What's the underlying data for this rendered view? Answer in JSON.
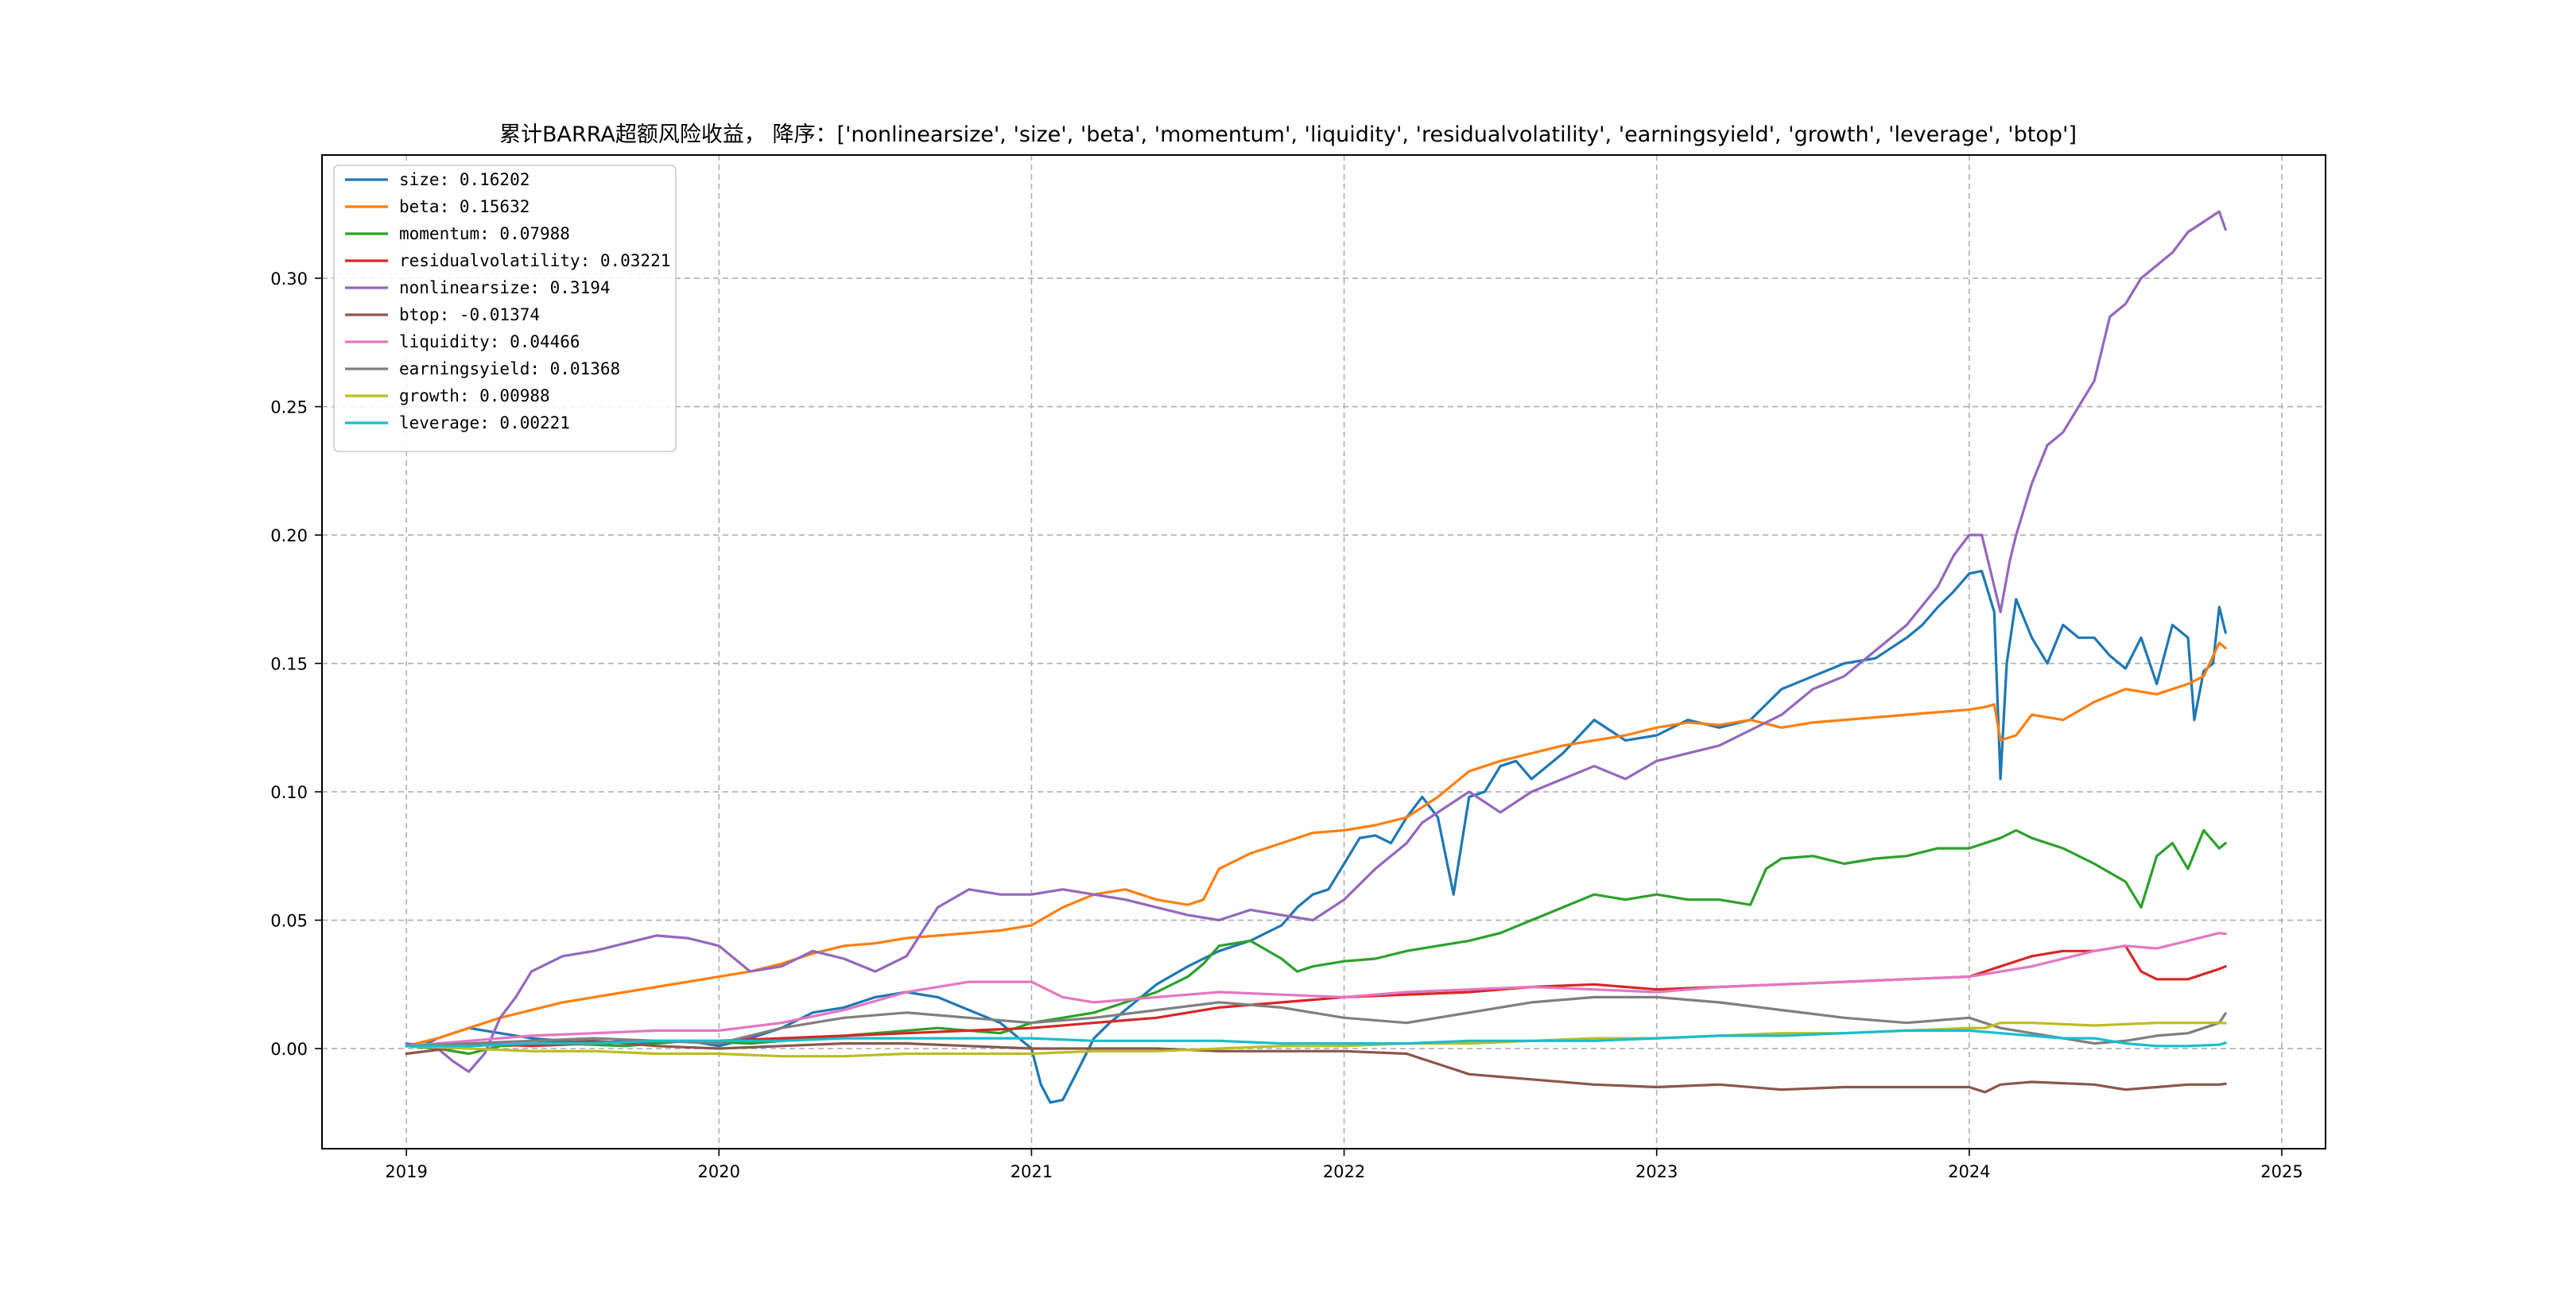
{
  "chart_data": {
    "type": "line",
    "title": "累计BARRA超额风险收益，  降序：['nonlinearsize', 'size', 'beta', 'momentum', 'liquidity', 'residualvolatility', 'earningsyield', 'growth', 'leverage', 'btop']",
    "xlabel": "",
    "ylabel": "",
    "xlim": [
      2018.73,
      2025.14
    ],
    "ylim": [
      -0.039,
      0.348
    ],
    "x_ticks": [
      2019,
      2020,
      2021,
      2022,
      2023,
      2024,
      2025
    ],
    "x_tick_labels": [
      "2019",
      "2020",
      "2021",
      "2022",
      "2023",
      "2024",
      "2025"
    ],
    "y_ticks": [
      0.0,
      0.05,
      0.1,
      0.15,
      0.2,
      0.25,
      0.3
    ],
    "y_tick_labels": [
      "0.00",
      "0.05",
      "0.10",
      "0.15",
      "0.20",
      "0.25",
      "0.30"
    ],
    "grid": true,
    "legend_position": "top-left",
    "series": [
      {
        "name": "size: 0.16202",
        "color": "#1f77b4",
        "x": [
          2019.0,
          2019.05,
          2019.1,
          2019.15,
          2019.2,
          2019.3,
          2019.4,
          2019.5,
          2019.6,
          2019.7,
          2019.8,
          2019.9,
          2020.0,
          2020.1,
          2020.2,
          2020.3,
          2020.4,
          2020.5,
          2020.6,
          2020.7,
          2020.8,
          2020.9,
          2021.0,
          2021.03,
          2021.06,
          2021.1,
          2021.15,
          2021.2,
          2021.25,
          2021.3,
          2021.4,
          2021.5,
          2021.6,
          2021.7,
          2021.8,
          2021.85,
          2021.9,
          2021.95,
          2022.0,
          2022.05,
          2022.1,
          2022.15,
          2022.2,
          2022.25,
          2022.3,
          2022.35,
          2022.4,
          2022.45,
          2022.5,
          2022.55,
          2022.6,
          2022.7,
          2022.8,
          2022.9,
          2023.0,
          2023.1,
          2023.2,
          2023.3,
          2023.4,
          2023.5,
          2023.6,
          2023.7,
          2023.8,
          2023.85,
          2023.9,
          2023.95,
          2024.0,
          2024.04,
          2024.08,
          2024.1,
          2024.12,
          2024.15,
          2024.2,
          2024.25,
          2024.3,
          2024.35,
          2024.4,
          2024.45,
          2024.5,
          2024.55,
          2024.6,
          2024.65,
          2024.7,
          2024.72,
          2024.75,
          2024.78,
          2024.8,
          2024.82
        ],
        "values": [
          0.002,
          0.001,
          0.004,
          0.006,
          0.008,
          0.006,
          0.004,
          0.003,
          0.002,
          0.003,
          0.002,
          0.003,
          0.001,
          0.004,
          0.008,
          0.014,
          0.016,
          0.02,
          0.022,
          0.02,
          0.015,
          0.01,
          0.0,
          -0.014,
          -0.021,
          -0.02,
          -0.008,
          0.004,
          0.01,
          0.015,
          0.025,
          0.032,
          0.038,
          0.042,
          0.048,
          0.055,
          0.06,
          0.062,
          0.072,
          0.082,
          0.083,
          0.08,
          0.09,
          0.098,
          0.09,
          0.06,
          0.098,
          0.1,
          0.11,
          0.112,
          0.105,
          0.115,
          0.128,
          0.12,
          0.122,
          0.128,
          0.125,
          0.128,
          0.14,
          0.145,
          0.15,
          0.152,
          0.16,
          0.165,
          0.172,
          0.178,
          0.185,
          0.186,
          0.17,
          0.105,
          0.15,
          0.175,
          0.16,
          0.15,
          0.165,
          0.16,
          0.16,
          0.153,
          0.148,
          0.16,
          0.142,
          0.165,
          0.16,
          0.128,
          0.147,
          0.15,
          0.172,
          0.162
        ]
      },
      {
        "name": "beta: 0.15632",
        "color": "#ff7f0e",
        "x": [
          2019.0,
          2019.1,
          2019.2,
          2019.3,
          2019.4,
          2019.5,
          2019.6,
          2019.7,
          2019.8,
          2019.9,
          2020.0,
          2020.1,
          2020.2,
          2020.3,
          2020.4,
          2020.5,
          2020.6,
          2020.7,
          2020.8,
          2020.9,
          2021.0,
          2021.1,
          2021.2,
          2021.3,
          2021.4,
          2021.5,
          2021.55,
          2021.6,
          2021.7,
          2021.8,
          2021.9,
          2022.0,
          2022.1,
          2022.2,
          2022.3,
          2022.4,
          2022.5,
          2022.6,
          2022.7,
          2022.8,
          2022.9,
          2023.0,
          2023.1,
          2023.2,
          2023.3,
          2023.4,
          2023.5,
          2023.6,
          2023.7,
          2023.8,
          2023.9,
          2024.0,
          2024.05,
          2024.08,
          2024.1,
          2024.15,
          2024.2,
          2024.3,
          2024.4,
          2024.5,
          2024.6,
          2024.7,
          2024.75,
          2024.8,
          2024.82
        ],
        "values": [
          0.001,
          0.004,
          0.008,
          0.012,
          0.015,
          0.018,
          0.02,
          0.022,
          0.024,
          0.026,
          0.028,
          0.03,
          0.033,
          0.037,
          0.04,
          0.041,
          0.043,
          0.044,
          0.045,
          0.046,
          0.048,
          0.055,
          0.06,
          0.062,
          0.058,
          0.056,
          0.058,
          0.07,
          0.076,
          0.08,
          0.084,
          0.085,
          0.087,
          0.09,
          0.098,
          0.108,
          0.112,
          0.115,
          0.118,
          0.12,
          0.122,
          0.125,
          0.127,
          0.126,
          0.128,
          0.125,
          0.127,
          0.128,
          0.129,
          0.13,
          0.131,
          0.132,
          0.133,
          0.134,
          0.12,
          0.122,
          0.13,
          0.128,
          0.135,
          0.14,
          0.138,
          0.142,
          0.145,
          0.158,
          0.156
        ]
      },
      {
        "name": "momentum: 0.07988",
        "color": "#2ca02c",
        "x": [
          2019.0,
          2019.1,
          2019.2,
          2019.3,
          2019.5,
          2019.7,
          2019.9,
          2020.1,
          2020.3,
          2020.5,
          2020.7,
          2020.9,
          2021.0,
          2021.1,
          2021.2,
          2021.3,
          2021.4,
          2021.5,
          2021.55,
          2021.6,
          2021.7,
          2021.8,
          2021.85,
          2021.9,
          2022.0,
          2022.1,
          2022.2,
          2022.3,
          2022.4,
          2022.5,
          2022.6,
          2022.7,
          2022.8,
          2022.9,
          2023.0,
          2023.1,
          2023.2,
          2023.3,
          2023.35,
          2023.4,
          2023.5,
          2023.6,
          2023.7,
          2023.8,
          2023.9,
          2024.0,
          2024.1,
          2024.15,
          2024.2,
          2024.3,
          2024.4,
          2024.5,
          2024.55,
          2024.6,
          2024.65,
          2024.7,
          2024.75,
          2024.8,
          2024.82
        ],
        "values": [
          0.001,
          0.0,
          -0.002,
          0.001,
          0.002,
          0.001,
          0.003,
          0.002,
          0.004,
          0.006,
          0.008,
          0.006,
          0.01,
          0.012,
          0.014,
          0.018,
          0.022,
          0.028,
          0.033,
          0.04,
          0.042,
          0.035,
          0.03,
          0.032,
          0.034,
          0.035,
          0.038,
          0.04,
          0.042,
          0.045,
          0.05,
          0.055,
          0.06,
          0.058,
          0.06,
          0.058,
          0.058,
          0.056,
          0.07,
          0.074,
          0.075,
          0.072,
          0.074,
          0.075,
          0.078,
          0.078,
          0.082,
          0.085,
          0.082,
          0.078,
          0.072,
          0.065,
          0.055,
          0.075,
          0.08,
          0.07,
          0.085,
          0.078,
          0.08
        ]
      },
      {
        "name": "residualvolatility: 0.03221",
        "color": "#d62728",
        "x": [
          2019.0,
          2019.2,
          2019.4,
          2019.6,
          2019.8,
          2020.0,
          2020.2,
          2020.4,
          2020.6,
          2020.8,
          2021.0,
          2021.2,
          2021.4,
          2021.6,
          2021.8,
          2022.0,
          2022.2,
          2022.4,
          2022.6,
          2022.8,
          2023.0,
          2023.2,
          2023.4,
          2023.6,
          2023.8,
          2024.0,
          2024.1,
          2024.2,
          2024.3,
          2024.4,
          2024.5,
          2024.55,
          2024.6,
          2024.7,
          2024.8,
          2024.82
        ],
        "values": [
          0.001,
          0.002,
          0.001,
          0.002,
          0.003,
          0.003,
          0.004,
          0.005,
          0.006,
          0.007,
          0.008,
          0.01,
          0.012,
          0.016,
          0.018,
          0.02,
          0.021,
          0.022,
          0.024,
          0.025,
          0.023,
          0.024,
          0.025,
          0.026,
          0.027,
          0.028,
          0.032,
          0.036,
          0.038,
          0.038,
          0.04,
          0.03,
          0.027,
          0.027,
          0.031,
          0.032
        ]
      },
      {
        "name": "nonlinearsize: 0.3194",
        "color": "#9467bd",
        "x": [
          2019.0,
          2019.1,
          2019.15,
          2019.2,
          2019.25,
          2019.3,
          2019.35,
          2019.4,
          2019.5,
          2019.6,
          2019.7,
          2019.8,
          2019.9,
          2020.0,
          2020.1,
          2020.2,
          2020.3,
          2020.4,
          2020.5,
          2020.6,
          2020.7,
          2020.8,
          2020.9,
          2021.0,
          2021.1,
          2021.2,
          2021.3,
          2021.4,
          2021.5,
          2021.6,
          2021.7,
          2021.8,
          2021.9,
          2022.0,
          2022.1,
          2022.2,
          2022.25,
          2022.3,
          2022.4,
          2022.5,
          2022.6,
          2022.7,
          2022.8,
          2022.9,
          2023.0,
          2023.1,
          2023.2,
          2023.3,
          2023.4,
          2023.5,
          2023.6,
          2023.7,
          2023.8,
          2023.9,
          2023.95,
          2024.0,
          2024.04,
          2024.08,
          2024.1,
          2024.13,
          2024.15,
          2024.2,
          2024.25,
          2024.3,
          2024.35,
          2024.4,
          2024.45,
          2024.5,
          2024.55,
          2024.6,
          2024.65,
          2024.7,
          2024.75,
          2024.8,
          2024.82
        ],
        "values": [
          0.002,
          0.0,
          -0.005,
          -0.009,
          -0.002,
          0.012,
          0.02,
          0.03,
          0.036,
          0.038,
          0.041,
          0.044,
          0.043,
          0.04,
          0.03,
          0.032,
          0.038,
          0.035,
          0.03,
          0.036,
          0.055,
          0.062,
          0.06,
          0.06,
          0.062,
          0.06,
          0.058,
          0.055,
          0.052,
          0.05,
          0.054,
          0.052,
          0.05,
          0.058,
          0.07,
          0.08,
          0.088,
          0.092,
          0.1,
          0.092,
          0.1,
          0.105,
          0.11,
          0.105,
          0.112,
          0.115,
          0.118,
          0.124,
          0.13,
          0.14,
          0.145,
          0.155,
          0.165,
          0.18,
          0.192,
          0.2,
          0.2,
          0.18,
          0.17,
          0.19,
          0.2,
          0.22,
          0.235,
          0.24,
          0.25,
          0.26,
          0.285,
          0.29,
          0.3,
          0.305,
          0.31,
          0.318,
          0.322,
          0.326,
          0.319
        ]
      },
      {
        "name": "btop: -0.01374",
        "color": "#8c564b",
        "x": [
          2019.0,
          2019.2,
          2019.4,
          2019.6,
          2019.8,
          2020.0,
          2020.2,
          2020.4,
          2020.6,
          2020.8,
          2021.0,
          2021.2,
          2021.4,
          2021.6,
          2021.8,
          2022.0,
          2022.2,
          2022.3,
          2022.4,
          2022.6,
          2022.8,
          2023.0,
          2023.2,
          2023.4,
          2023.6,
          2023.8,
          2024.0,
          2024.05,
          2024.1,
          2024.2,
          2024.4,
          2024.5,
          2024.6,
          2024.7,
          2024.8,
          2024.82
        ],
        "values": [
          -0.002,
          0.001,
          0.002,
          0.003,
          0.001,
          0.0,
          0.001,
          0.002,
          0.002,
          0.001,
          0.0,
          0.0,
          0.0,
          -0.001,
          -0.001,
          -0.001,
          -0.002,
          -0.006,
          -0.01,
          -0.012,
          -0.014,
          -0.015,
          -0.014,
          -0.016,
          -0.015,
          -0.015,
          -0.015,
          -0.017,
          -0.014,
          -0.013,
          -0.014,
          -0.016,
          -0.015,
          -0.014,
          -0.014,
          -0.0137
        ]
      },
      {
        "name": "liquidity: 0.04466",
        "color": "#e377c2",
        "x": [
          2019.0,
          2019.2,
          2019.4,
          2019.6,
          2019.8,
          2020.0,
          2020.2,
          2020.4,
          2020.6,
          2020.8,
          2021.0,
          2021.1,
          2021.2,
          2021.4,
          2021.6,
          2021.8,
          2022.0,
          2022.2,
          2022.4,
          2022.6,
          2022.8,
          2023.0,
          2023.2,
          2023.4,
          2023.6,
          2023.8,
          2024.0,
          2024.2,
          2024.4,
          2024.5,
          2024.6,
          2024.7,
          2024.8,
          2024.82
        ],
        "values": [
          0.001,
          0.003,
          0.005,
          0.006,
          0.007,
          0.007,
          0.01,
          0.015,
          0.022,
          0.026,
          0.026,
          0.02,
          0.018,
          0.02,
          0.022,
          0.021,
          0.02,
          0.022,
          0.023,
          0.024,
          0.023,
          0.022,
          0.024,
          0.025,
          0.026,
          0.027,
          0.028,
          0.032,
          0.038,
          0.04,
          0.039,
          0.042,
          0.045,
          0.0447
        ]
      },
      {
        "name": "earningsyield: 0.01368",
        "color": "#7f7f7f",
        "x": [
          2019.0,
          2019.2,
          2019.4,
          2019.6,
          2019.8,
          2020.0,
          2020.2,
          2020.4,
          2020.6,
          2020.8,
          2021.0,
          2021.2,
          2021.4,
          2021.6,
          2021.8,
          2022.0,
          2022.2,
          2022.4,
          2022.6,
          2022.8,
          2023.0,
          2023.2,
          2023.4,
          2023.6,
          2023.8,
          2024.0,
          2024.1,
          2024.2,
          2024.3,
          2024.4,
          2024.5,
          2024.6,
          2024.7,
          2024.8,
          2024.82
        ],
        "values": [
          0.001,
          0.002,
          0.003,
          0.004,
          0.003,
          0.002,
          0.008,
          0.012,
          0.014,
          0.012,
          0.01,
          0.012,
          0.015,
          0.018,
          0.016,
          0.012,
          0.01,
          0.014,
          0.018,
          0.02,
          0.02,
          0.018,
          0.015,
          0.012,
          0.01,
          0.012,
          0.008,
          0.006,
          0.004,
          0.002,
          0.003,
          0.005,
          0.006,
          0.01,
          0.0137
        ]
      },
      {
        "name": "growth: 0.00988",
        "color": "#bcbd22",
        "x": [
          2019.0,
          2019.2,
          2019.4,
          2019.6,
          2019.8,
          2020.0,
          2020.2,
          2020.4,
          2020.6,
          2020.8,
          2021.0,
          2021.2,
          2021.4,
          2021.6,
          2021.8,
          2022.0,
          2022.2,
          2022.4,
          2022.6,
          2022.8,
          2023.0,
          2023.2,
          2023.4,
          2023.6,
          2023.8,
          2024.0,
          2024.05,
          2024.1,
          2024.2,
          2024.4,
          2024.6,
          2024.8,
          2024.82
        ],
        "values": [
          0.001,
          0.0,
          -0.001,
          -0.001,
          -0.002,
          -0.002,
          -0.003,
          -0.003,
          -0.002,
          -0.002,
          -0.002,
          -0.001,
          -0.001,
          0.0,
          0.001,
          0.001,
          0.002,
          0.002,
          0.003,
          0.004,
          0.004,
          0.005,
          0.006,
          0.006,
          0.007,
          0.008,
          0.008,
          0.01,
          0.01,
          0.009,
          0.01,
          0.01,
          0.0099
        ]
      },
      {
        "name": "leverage: 0.00221",
        "color": "#17becf",
        "x": [
          2019.0,
          2019.2,
          2019.4,
          2019.6,
          2019.8,
          2020.0,
          2020.2,
          2020.4,
          2020.6,
          2020.8,
          2021.0,
          2021.2,
          2021.4,
          2021.6,
          2021.8,
          2022.0,
          2022.2,
          2022.4,
          2022.6,
          2022.8,
          2023.0,
          2023.2,
          2023.4,
          2023.6,
          2023.8,
          2024.0,
          2024.1,
          2024.2,
          2024.3,
          2024.4,
          2024.5,
          2024.6,
          2024.7,
          2024.8,
          2024.82
        ],
        "values": [
          0.001,
          0.001,
          0.002,
          0.002,
          0.003,
          0.003,
          0.003,
          0.004,
          0.004,
          0.004,
          0.004,
          0.003,
          0.003,
          0.003,
          0.002,
          0.002,
          0.002,
          0.003,
          0.003,
          0.003,
          0.004,
          0.005,
          0.005,
          0.006,
          0.007,
          0.007,
          0.006,
          0.005,
          0.004,
          0.004,
          0.002,
          0.001,
          0.001,
          0.0015,
          0.0022
        ]
      }
    ]
  }
}
